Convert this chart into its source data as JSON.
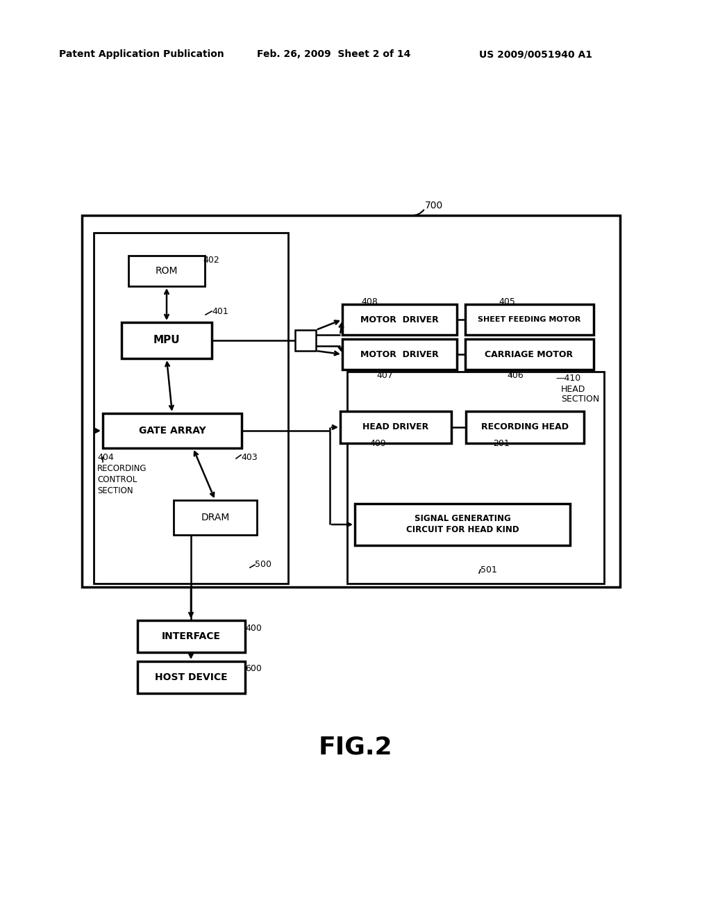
{
  "bg_color": "#ffffff",
  "header_left": "Patent Application Publication",
  "header_mid": "Feb. 26, 2009  Sheet 2 of 14",
  "header_right": "US 2009/0051940 A1",
  "figure_label": "FIG.2"
}
